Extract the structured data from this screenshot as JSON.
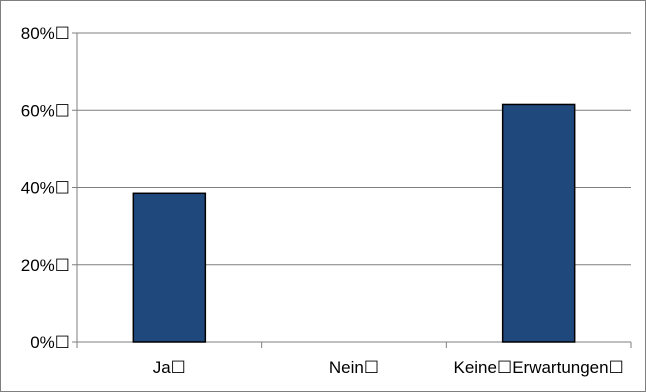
{
  "chart_data": {
    "type": "bar",
    "categories": [
      "Ja☐",
      "Nein☐",
      "Keine☐Erwartungen☐"
    ],
    "values": [
      0.385,
      0.0,
      0.615
    ],
    "y_tick_labels": [
      "0%☐",
      "20%☐",
      "40%☐",
      "60%☐",
      "80%☐"
    ],
    "ylim": [
      0,
      0.8
    ],
    "title": "",
    "xlabel": "",
    "ylabel": "",
    "grid": true,
    "legend": "none",
    "colors": {
      "bar_fill": "#1f497d",
      "bar_stroke": "#000000",
      "grid": "#7f7f7f",
      "axis": "#7f7f7f"
    }
  }
}
